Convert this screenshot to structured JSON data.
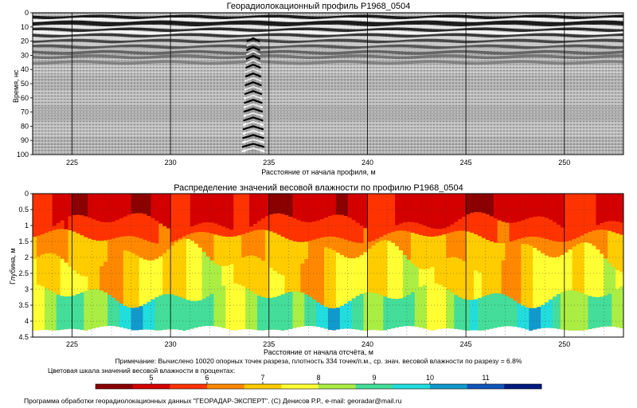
{
  "chart_data": [
    {
      "type": "heatmap",
      "title": "Георадиолокационный профиль  P1968_0504",
      "xlabel": "Расстояние от начала профиля, м",
      "ylabel": "Время, нс",
      "xlim": [
        223,
        253
      ],
      "ylim": [
        0,
        100
      ],
      "x_ticks": [
        "225",
        "230",
        "235",
        "240",
        "245",
        "250"
      ],
      "y_ticks": [
        "0",
        "10",
        "20",
        "30",
        "40",
        "50",
        "60",
        "70",
        "80",
        "90",
        "100"
      ],
      "grid": true
    },
    {
      "type": "heatmap",
      "title": "Распределение значений весовой влажности по профилю P1968_0504",
      "xlabel": "Расстояние от начала отсчёта, м",
      "ylabel": "Глубина, м",
      "xlim": [
        223,
        253
      ],
      "ylim": [
        0,
        4.5
      ],
      "x_ticks": [
        "225",
        "230",
        "235",
        "240",
        "245",
        "250"
      ],
      "y_ticks": [
        "0",
        "0.5",
        "1",
        "1.5",
        "2",
        "2.5",
        "3",
        "3.5",
        "4",
        "4.5"
      ],
      "grid": true,
      "note": "Примечание: Вычислено 10020 опорных точек разреза, плотность 334 точек/п.м., ср. знач. весовой влажности по разрезу = 6.8%",
      "colorscale_title": "Цветовая шкала значений весовой влажности в процентах:",
      "colorscale_ticks": [
        "5",
        "6",
        "7",
        "8",
        "9",
        "10",
        "11"
      ],
      "colorscale_range": [
        4,
        12
      ],
      "colorscale_colors": [
        "#8b0000",
        "#d40000",
        "#ff3300",
        "#ff8800",
        "#ffcc00",
        "#ffff33",
        "#aaee44",
        "#44dd99",
        "#22dddd",
        "#1199cc",
        "#1155bb",
        "#001a80"
      ]
    }
  ],
  "footer": "Программа обработки георадиолокационных данных \"ГЕОРАДАР-ЭКСПЕРТ\". (С) Денисов Р.Р., e-mail: georadar@mail.ru"
}
